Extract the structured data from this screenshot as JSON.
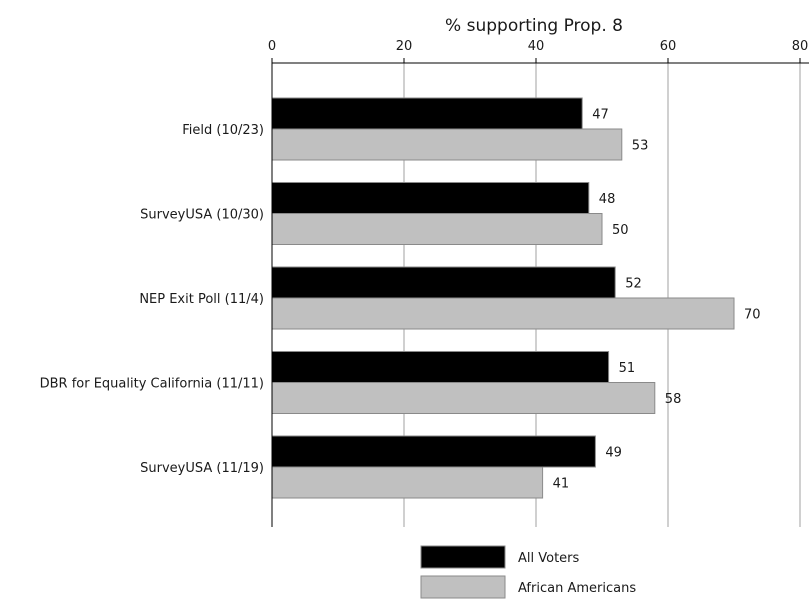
{
  "chart_data": {
    "type": "bar",
    "orientation": "horizontal",
    "title": "",
    "xlabel": "% supporting Prop. 8",
    "ylabel": "",
    "xlim": [
      0,
      80
    ],
    "x_ticks": [
      0,
      20,
      40,
      60,
      80
    ],
    "x_tick_labels": [
      "0",
      "20",
      "40",
      "60",
      "80"
    ],
    "x_axis_position": "top",
    "grid": true,
    "legend_position": "bottom",
    "categories": [
      "Field (10/23)",
      "SurveyUSA (10/30)",
      "NEP Exit Poll (11/4)",
      "DBR for Equality California (11/11)",
      "SurveyUSA (11/19)"
    ],
    "series": [
      {
        "name": "All Voters",
        "color": "#000000",
        "values": [
          47,
          48,
          52,
          51,
          49
        ]
      },
      {
        "name": "African Americans",
        "color": "#c0c0c0",
        "values": [
          53,
          50,
          70,
          58,
          41
        ]
      }
    ]
  }
}
